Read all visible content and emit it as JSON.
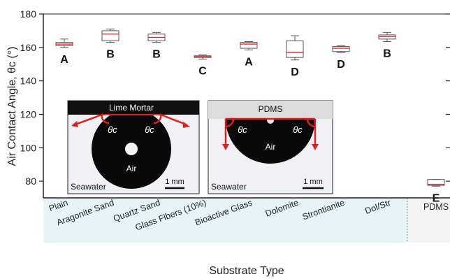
{
  "chart_data": {
    "type": "box",
    "xlabel": "Substrate Type",
    "ylabel": "Air Contact Angle, θc (°)",
    "ylim": [
      70,
      180
    ],
    "yticks": [
      80,
      100,
      120,
      140,
      160,
      180
    ],
    "categories": [
      "Plain",
      "Aragonite Sand",
      "Quartz Sand",
      "Glass Fibers (10%)",
      "Bioactive Glass",
      "Dolomite",
      "Strontianite",
      "Dol/Str",
      "PDMS"
    ],
    "boxes": [
      {
        "category": "Plain",
        "min": 160,
        "q1": 161,
        "median": 162,
        "q3": 163,
        "max": 165,
        "group": "A"
      },
      {
        "category": "Aragonite Sand",
        "min": 163,
        "q1": 164,
        "median": 168,
        "q3": 170,
        "max": 171,
        "group": "B"
      },
      {
        "category": "Quartz Sand",
        "min": 163,
        "q1": 164,
        "median": 166,
        "q3": 168,
        "max": 169,
        "group": "B"
      },
      {
        "category": "Glass Fibers (10%)",
        "min": 153,
        "q1": 154,
        "median": 154.5,
        "q3": 155,
        "max": 155.5,
        "group": "C"
      },
      {
        "category": "Bioactive Glass",
        "min": 158.5,
        "q1": 159.5,
        "median": 162,
        "q3": 163,
        "max": 163.5,
        "group": "A"
      },
      {
        "category": "Dolomite",
        "min": 152.5,
        "q1": 154,
        "median": 157,
        "q3": 164,
        "max": 167,
        "group": "D"
      },
      {
        "category": "Strontianite",
        "min": 157,
        "q1": 157.5,
        "median": 159.5,
        "q3": 160.5,
        "max": 161,
        "group": "D"
      },
      {
        "category": "Dol/Str",
        "min": 163.5,
        "q1": 165,
        "median": 166.5,
        "q3": 167.5,
        "max": 169,
        "group": "B"
      },
      {
        "category": "PDMS",
        "min": 77,
        "q1": 77.5,
        "median": 78,
        "q3": 81,
        "max": 81,
        "group": "E"
      }
    ],
    "box_color": "#555555",
    "median_color": "#e03030"
  },
  "insets": [
    {
      "surface": "Lime Mortar",
      "angle": "θc",
      "droplet": "Air",
      "medium": "Seawater",
      "scale": "1 mm"
    },
    {
      "surface": "PDMS",
      "angle": "θc",
      "droplet": "Air",
      "medium": "Seawater",
      "scale": "1 mm"
    }
  ],
  "colors": {
    "light_band": "#e6f3f7",
    "right_band": "#f4f4f4",
    "arrow": "#e0201a"
  }
}
